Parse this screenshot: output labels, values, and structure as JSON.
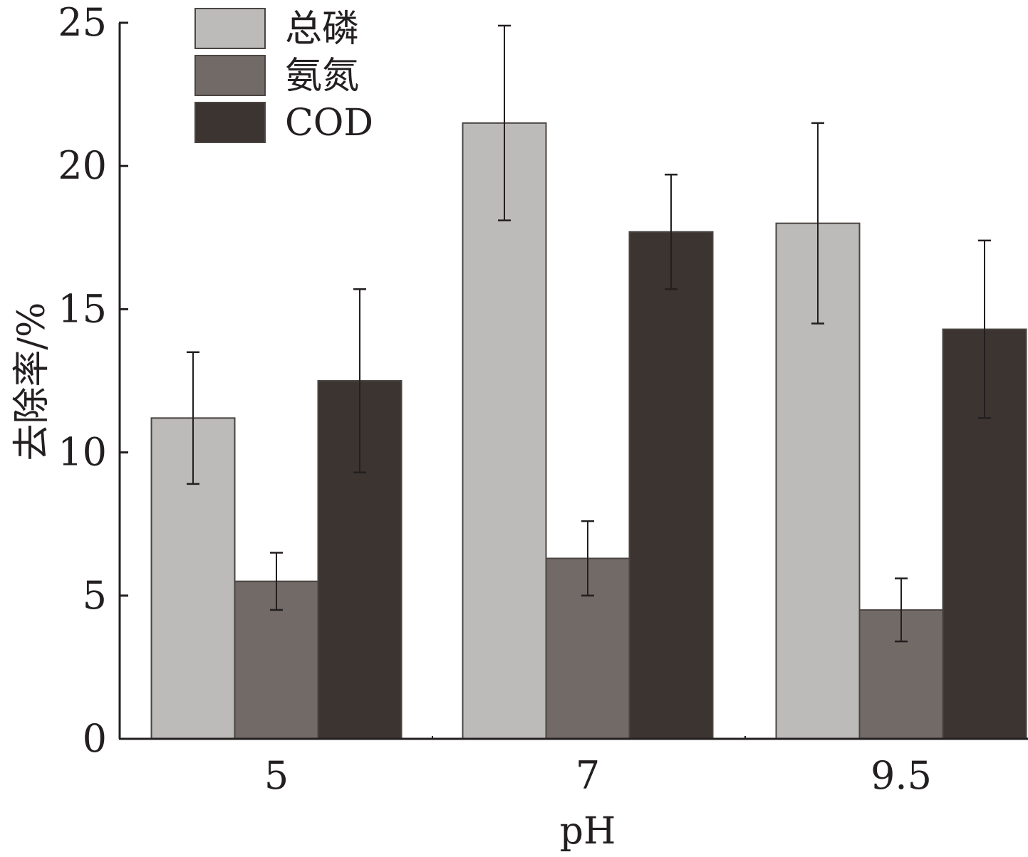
{
  "chart_data": {
    "type": "bar",
    "xlabel": "pH",
    "ylabel": "去除率/%",
    "categories": [
      "5",
      "7",
      "9.5"
    ],
    "ylim": [
      0,
      25
    ],
    "yticks": [
      "0",
      "5",
      "10",
      "15",
      "20",
      "25"
    ],
    "legend_position": "top-left",
    "series": [
      {
        "name": "总磷",
        "color": "#bcbbba",
        "values": [
          11.2,
          21.5,
          18.0
        ],
        "errors": [
          2.3,
          3.4,
          3.5
        ]
      },
      {
        "name": "氨氮",
        "color": "#726a66",
        "values": [
          5.5,
          6.3,
          4.5
        ],
        "errors": [
          1.0,
          1.3,
          1.1
        ]
      },
      {
        "name": "COD",
        "color": "#3b3430",
        "values": [
          12.5,
          17.7,
          14.3
        ],
        "errors": [
          3.2,
          2.0,
          3.1
        ]
      }
    ]
  }
}
